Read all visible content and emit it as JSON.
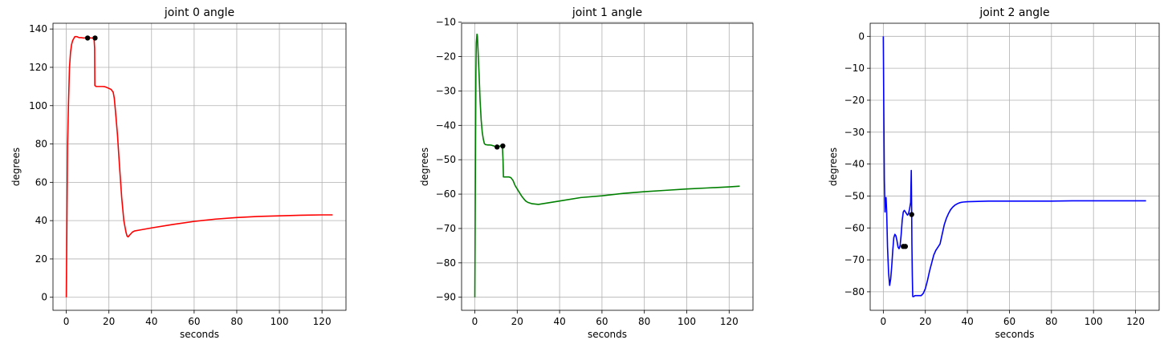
{
  "chart_data": [
    {
      "type": "line",
      "title": "joint 0 angle",
      "xlabel": "seconds",
      "ylabel": "degrees",
      "xlim": [
        -6.25,
        131.25
      ],
      "ylim": [
        -6.8,
        143.0
      ],
      "xticks": [
        0,
        20,
        40,
        60,
        80,
        100,
        120
      ],
      "yticks": [
        0,
        20,
        40,
        60,
        80,
        100,
        120,
        140
      ],
      "grid": true,
      "color": "#ff0000",
      "series": [
        {
          "x": [
            0,
            0.3,
            0.6,
            1,
            1.5,
            2,
            2.5,
            3,
            3.5,
            4,
            4.5,
            5,
            6,
            7,
            8,
            9,
            10,
            11,
            12,
            13,
            13.3,
            13.4,
            14,
            15,
            16,
            17,
            18,
            19,
            20,
            21,
            22,
            22.5,
            23,
            24,
            25,
            26,
            27,
            28,
            28.5,
            29,
            30,
            31,
            32,
            35,
            40,
            50,
            60,
            70,
            80,
            90,
            100,
            110,
            120,
            125
          ],
          "y": [
            0,
            40,
            80,
            100,
            120,
            128,
            132,
            134,
            135,
            136,
            136,
            136,
            135.5,
            135.5,
            135.3,
            135.4,
            135.5,
            135.4,
            135.3,
            135.4,
            130,
            110.5,
            110,
            110,
            110,
            110,
            109.9,
            109.5,
            109,
            108.5,
            107,
            104,
            98,
            85,
            68,
            52,
            40,
            34,
            32,
            31.5,
            32.8,
            34,
            34.6,
            35.2,
            36.2,
            38,
            39.6,
            40.8,
            41.6,
            42.2,
            42.5,
            42.8,
            43.0,
            43.0
          ]
        }
      ],
      "markers": [
        {
          "x": 10,
          "y": 135.3
        },
        {
          "x": 13.5,
          "y": 135.3
        }
      ]
    },
    {
      "type": "line",
      "title": "joint 1 angle",
      "xlabel": "seconds",
      "ylabel": "degrees",
      "xlim": [
        -6.25,
        131.25
      ],
      "ylim": [
        -93.8,
        -10.3
      ],
      "xticks": [
        0,
        20,
        40,
        60,
        80,
        100,
        120
      ],
      "yticks": [
        -90,
        -80,
        -70,
        -60,
        -50,
        -40,
        -30,
        -20,
        -10
      ],
      "grid": true,
      "color": "#008000",
      "series": [
        {
          "x": [
            0,
            0.3,
            0.5,
            0.7,
            1,
            1.2,
            1.5,
            2,
            2.5,
            3,
            3.5,
            4,
            4.5,
            5,
            6,
            7,
            8,
            9,
            10,
            11,
            12,
            13,
            13.3,
            13.5,
            14,
            15,
            16,
            17,
            18,
            19,
            20,
            21,
            22,
            23,
            24,
            25,
            27,
            30,
            35,
            40,
            50,
            60,
            70,
            80,
            90,
            100,
            110,
            120,
            125
          ],
          "y": [
            -90,
            -50,
            -25,
            -16,
            -13.5,
            -14,
            -18,
            -25,
            -33,
            -38.5,
            -42,
            -44,
            -45.3,
            -45.6,
            -45.7,
            -45.7,
            -45.8,
            -46.0,
            -46.3,
            -46.3,
            -46.0,
            -46.0,
            -50,
            -55,
            -55,
            -55,
            -55,
            -55.2,
            -56,
            -57.5,
            -58.5,
            -59.5,
            -60.5,
            -61.3,
            -62.0,
            -62.4,
            -62.8,
            -63.0,
            -62.5,
            -62.0,
            -61.0,
            -60.5,
            -59.8,
            -59.3,
            -58.9,
            -58.5,
            -58.2,
            -57.9,
            -57.7
          ]
        }
      ],
      "markers": [
        {
          "x": 10.5,
          "y": -46.3
        },
        {
          "x": 13.2,
          "y": -46.0
        }
      ]
    },
    {
      "type": "line",
      "title": "joint 2 angle",
      "xlabel": "seconds",
      "ylabel": "degrees",
      "xlim": [
        -6.25,
        131.25
      ],
      "ylim": [
        -85.8,
        4.1
      ],
      "xticks": [
        0,
        20,
        40,
        60,
        80,
        100,
        120
      ],
      "yticks": [
        -80,
        -70,
        -60,
        -50,
        -40,
        -30,
        -20,
        -10,
        0
      ],
      "grid": true,
      "color": "#0000ff",
      "series": [
        {
          "x": [
            0,
            0.2,
            0.5,
            0.8,
            1,
            1.3,
            1.6,
            2,
            2.5,
            3,
            3.5,
            4,
            4.5,
            5,
            5.5,
            6,
            6.5,
            7,
            7.5,
            8,
            8.5,
            9,
            9.5,
            10,
            10.5,
            11,
            11.5,
            12,
            12.5,
            13,
            13.3,
            13.5,
            13.6,
            13.8,
            14,
            14.5,
            15,
            16,
            17,
            18,
            19,
            20,
            21,
            22,
            23,
            24,
            25,
            26,
            27,
            28,
            29,
            30,
            31,
            32,
            33,
            34,
            35,
            36,
            37,
            38,
            40,
            45,
            50,
            60,
            70,
            80,
            90,
            100,
            110,
            120,
            125
          ],
          "y": [
            0,
            -20,
            -45,
            -55,
            -51,
            -50.5,
            -55,
            -66,
            -74,
            -78,
            -76,
            -72,
            -67,
            -63,
            -62,
            -62.5,
            -64,
            -66,
            -66.5,
            -65.5,
            -62,
            -57.5,
            -55,
            -54.5,
            -55,
            -55.5,
            -56,
            -55.5,
            -54,
            -52,
            -42,
            -55,
            -65,
            -75,
            -81.5,
            -81.5,
            -81.2,
            -81.2,
            -81.2,
            -81.2,
            -80.5,
            -79,
            -76.5,
            -73.5,
            -71,
            -68.5,
            -67,
            -66,
            -65,
            -62,
            -59,
            -57,
            -55.5,
            -54.3,
            -53.5,
            -52.9,
            -52.5,
            -52.2,
            -52.0,
            -51.9,
            -51.8,
            -51.7,
            -51.6,
            -51.6,
            -51.6,
            -51.6,
            -51.5,
            -51.5,
            -51.5,
            -51.5,
            -51.5
          ]
        }
      ],
      "markers": [
        {
          "x": 9.5,
          "y": -65.8
        },
        {
          "x": 10.5,
          "y": -65.8
        },
        {
          "x": 13.5,
          "y": -55.8
        }
      ]
    }
  ]
}
